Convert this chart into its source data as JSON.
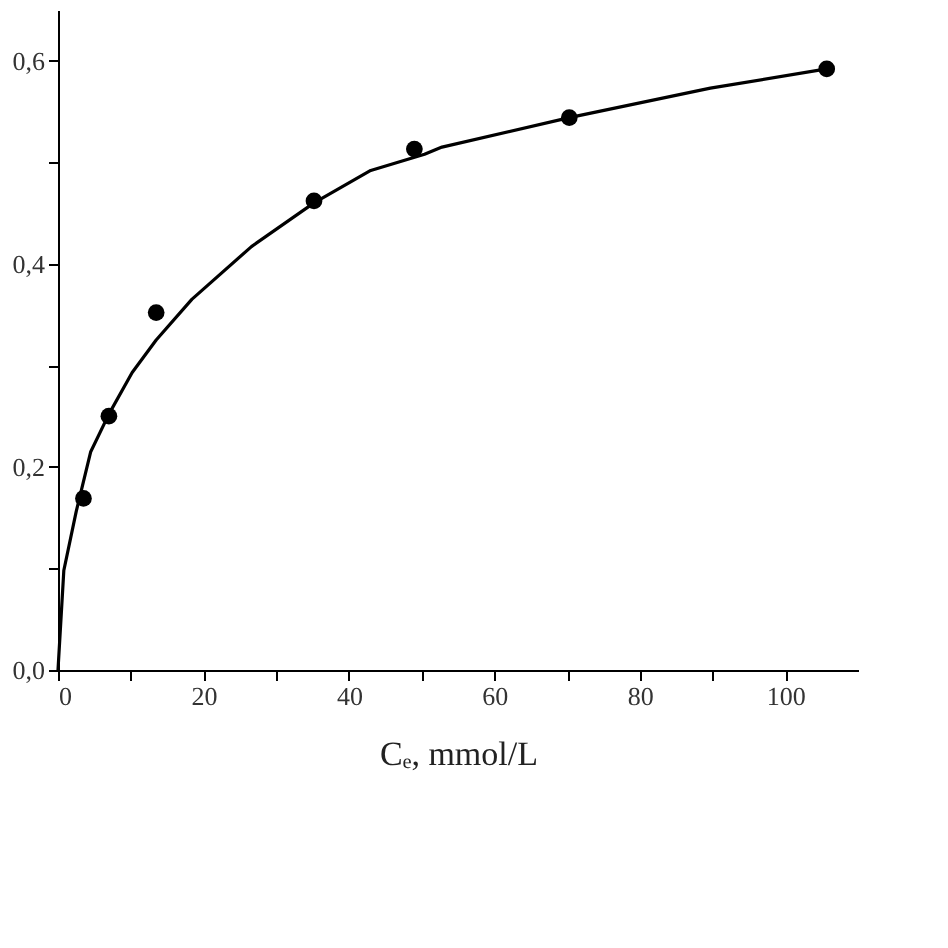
{
  "chart_data": {
    "type": "scatter",
    "xlabel": "Cₑ, mmol/L",
    "xlim": [
      0,
      110
    ],
    "ylim": [
      0,
      0.65
    ],
    "xticks": [
      0,
      {
        "value": 10,
        "label": null
      },
      20,
      {
        "value": 30,
        "label": null
      },
      40,
      {
        "value": 50,
        "label": null
      },
      60,
      {
        "value": 70,
        "label": null
      },
      80,
      {
        "value": 90,
        "label": null
      },
      100
    ],
    "yticks": [
      {
        "value": 0,
        "label": "0,0"
      },
      {
        "value": 0.1,
        "label": null
      },
      {
        "value": 0.2,
        "label": "0,2"
      },
      {
        "value": 0.3,
        "label": null
      },
      {
        "value": 0.4,
        "label": "0,4"
      },
      {
        "value": 0.5,
        "label": null
      },
      {
        "value": 0.6,
        "label": "0,6"
      }
    ],
    "grid": false,
    "series": [
      {
        "color": "#000000",
        "marker": "circle",
        "x": [
          3.5,
          7.0,
          13.5,
          35.2,
          49,
          70.3,
          105.7
        ],
        "values": [
          0.169,
          0.25,
          0.352,
          0.462,
          0.513,
          0.544,
          0.592
        ]
      },
      {
        "type": "line",
        "color": "#000000",
        "marker": "none",
        "line_style": "solid",
        "x": [
          0,
          0.8,
          2.5,
          4.5,
          7.0,
          10.2,
          13.5,
          18.4,
          26.6,
          35.2,
          43,
          50.4,
          52.8,
          70.3,
          89.7,
          105.7
        ],
        "values": [
          0,
          0.098,
          0.156,
          0.215,
          0.252,
          0.293,
          0.325,
          0.365,
          0.417,
          0.46,
          0.492,
          0.508,
          0.515,
          0.544,
          0.573,
          0.592
        ]
      }
    ]
  }
}
